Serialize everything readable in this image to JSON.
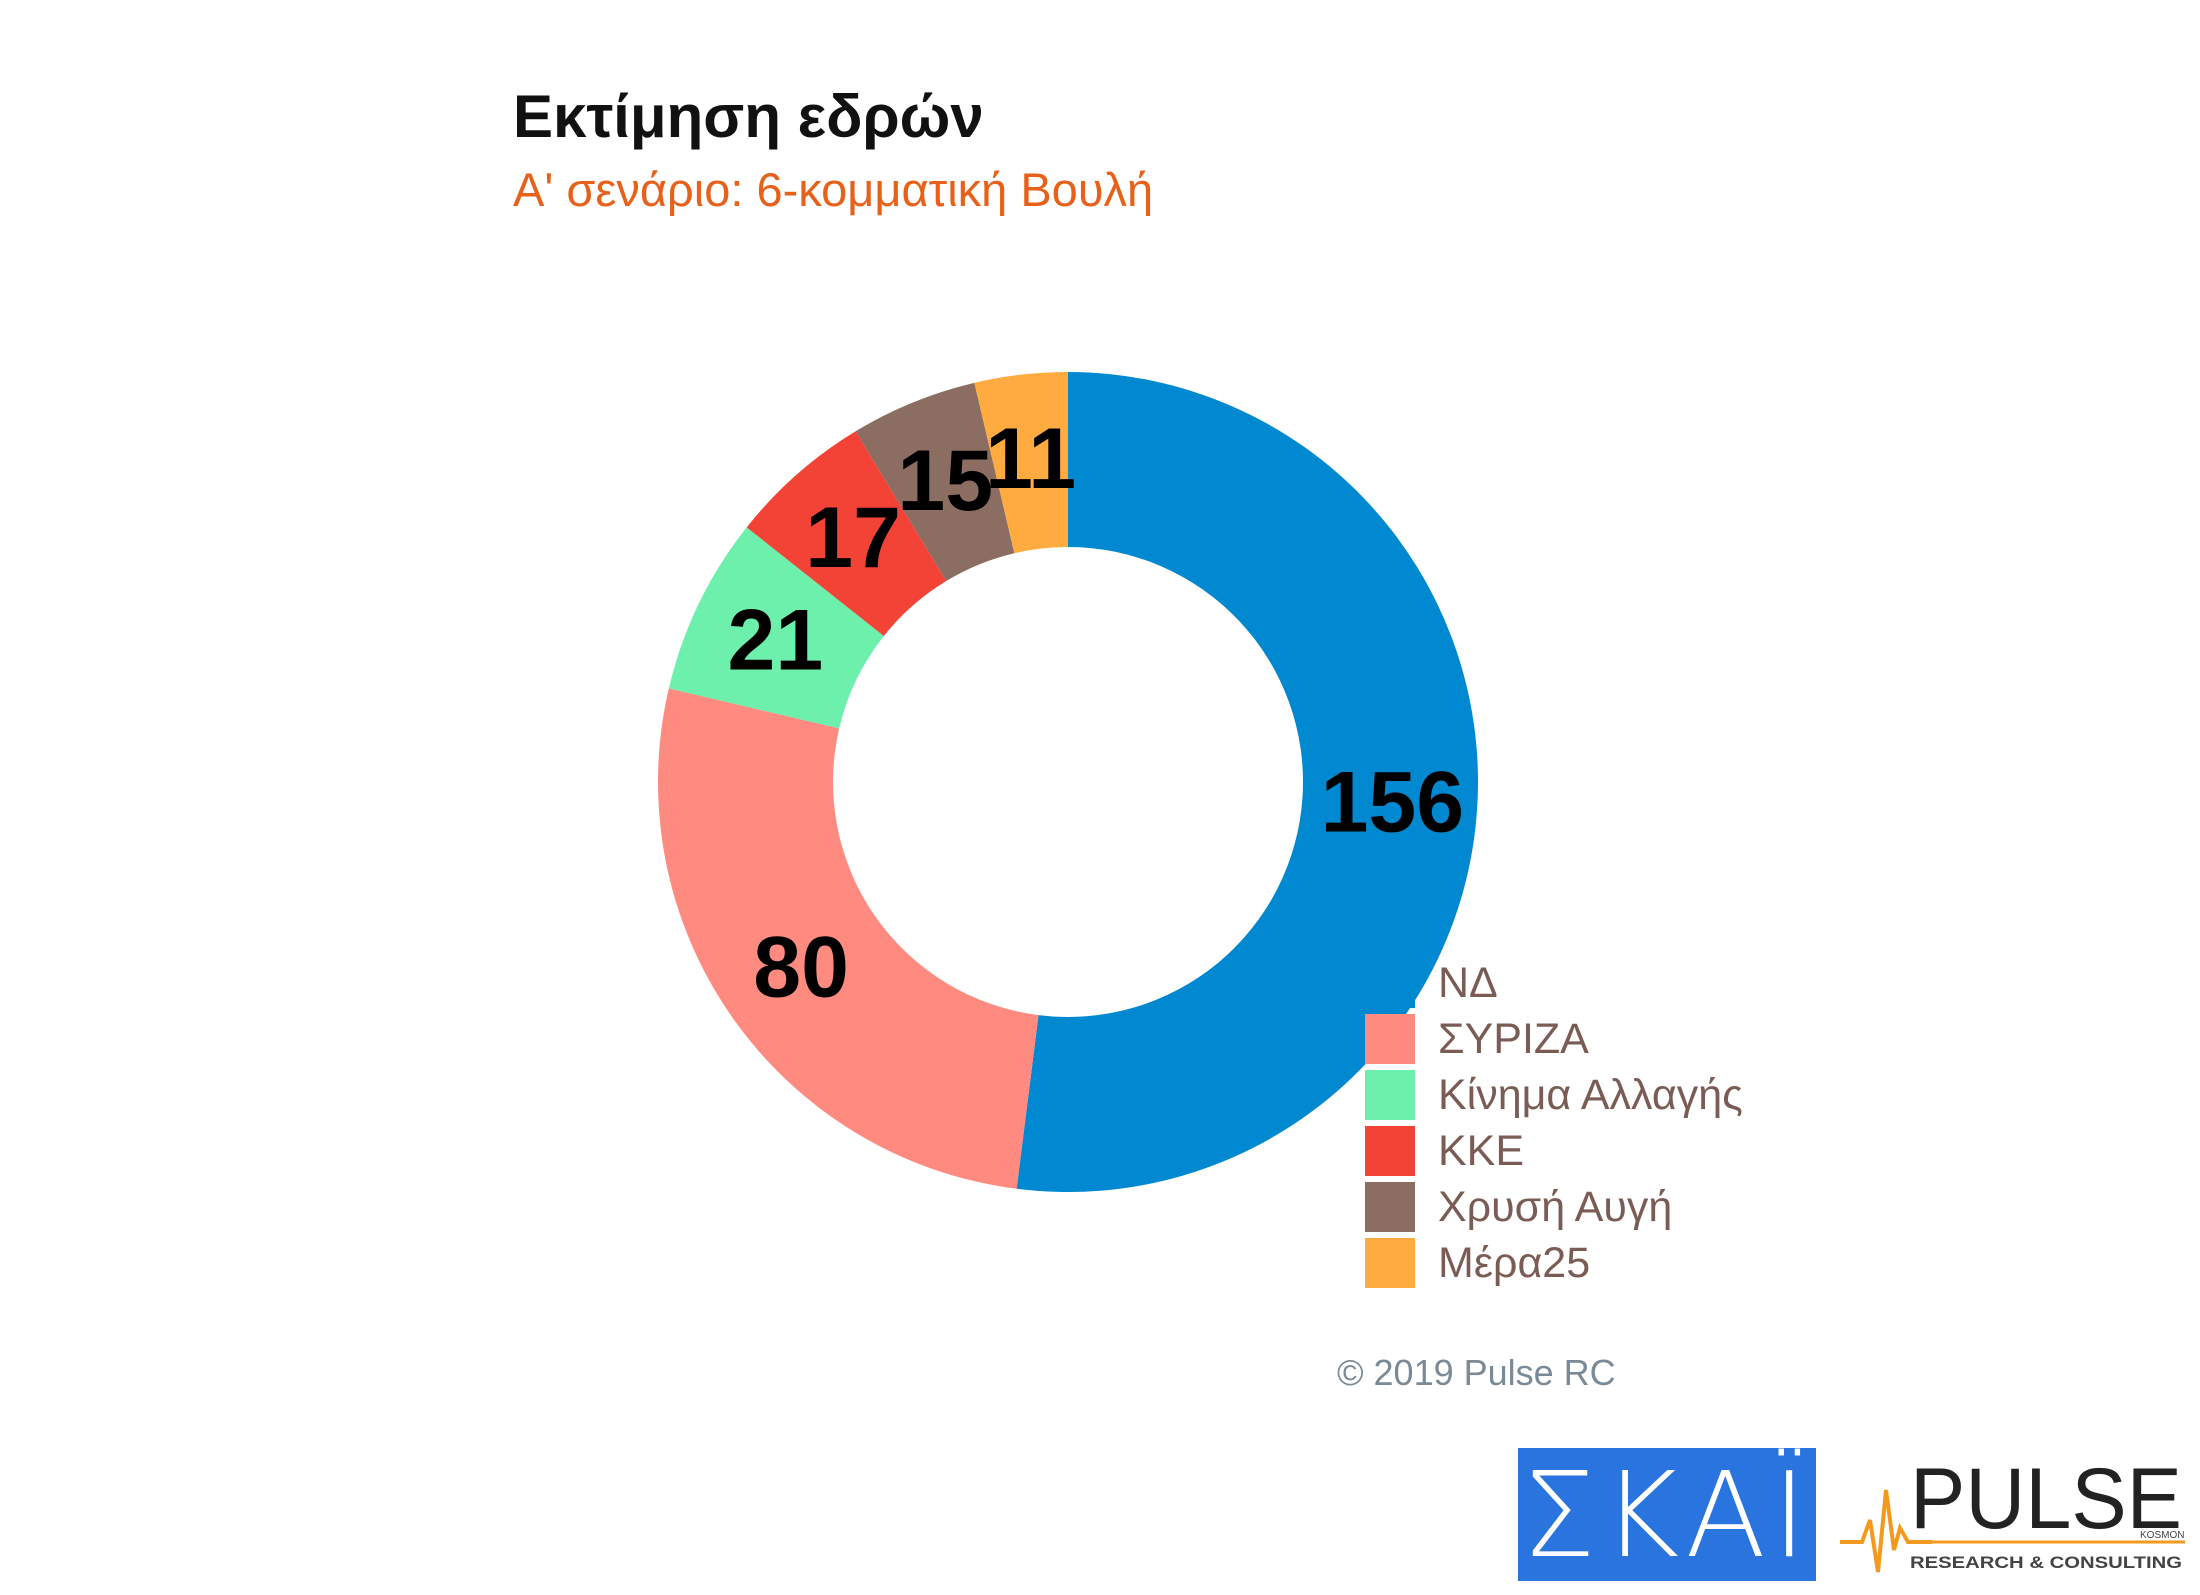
{
  "chart_data": {
    "type": "pie",
    "donut": true,
    "title": "Εκτίμηση εδρών",
    "subtitle": "Α' σενάριο: 6-κομματική Βουλή",
    "categories": [
      "ΝΔ",
      "ΣΥΡΙΖΑ",
      "Κίνημα Αλλαγής",
      "ΚΚΕ",
      "Χρυσή Αυγή",
      "Μέρα25"
    ],
    "values": [
      156,
      80,
      21,
      17,
      15,
      11
    ],
    "colors": [
      "#0088d1",
      "#ff8b80",
      "#6cf0ac",
      "#f34337",
      "#8c6d62",
      "#ffab40"
    ],
    "legend_position": "bottom-right"
  },
  "footer": {
    "copyright": "© 2019 Pulse RC"
  },
  "logos": {
    "skai": "ΣΚΑΪ",
    "pulse": "PULSE",
    "pulse_tag": "RESEARCH & CONSULTING",
    "pulse_small": "KOSMON"
  }
}
